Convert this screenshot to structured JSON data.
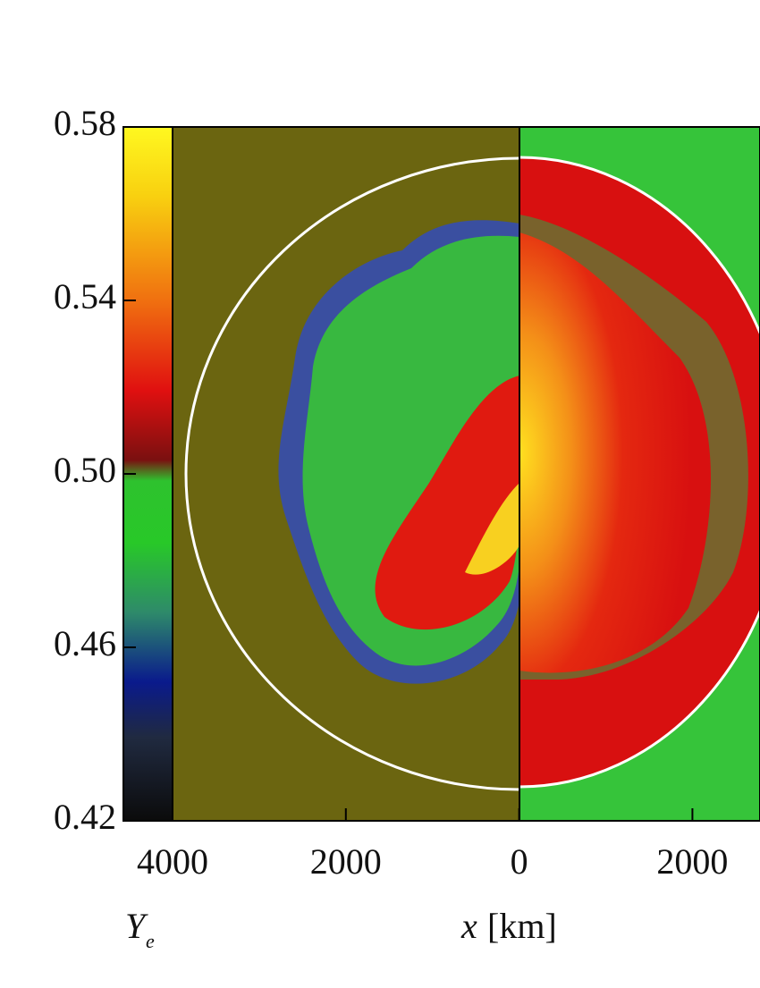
{
  "chart_data": {
    "type": "heatmap",
    "colorbar_label": {
      "symbol": "Y",
      "subscript": "e"
    },
    "x_label": {
      "symbol": "x",
      "unit": "[km]"
    },
    "colorbar_lim": [
      0.42,
      0.58
    ],
    "colorbar_ticks": [
      0.42,
      0.46,
      {
        "value": 0.5,
        "label": "0.50"
      },
      0.54,
      0.58
    ],
    "xlim": [
      -4000,
      2780
    ],
    "xticks": [
      {
        "value": -4000,
        "label": "4000"
      },
      {
        "value": -2000,
        "label": "2000"
      },
      0,
      2000
    ]
  }
}
